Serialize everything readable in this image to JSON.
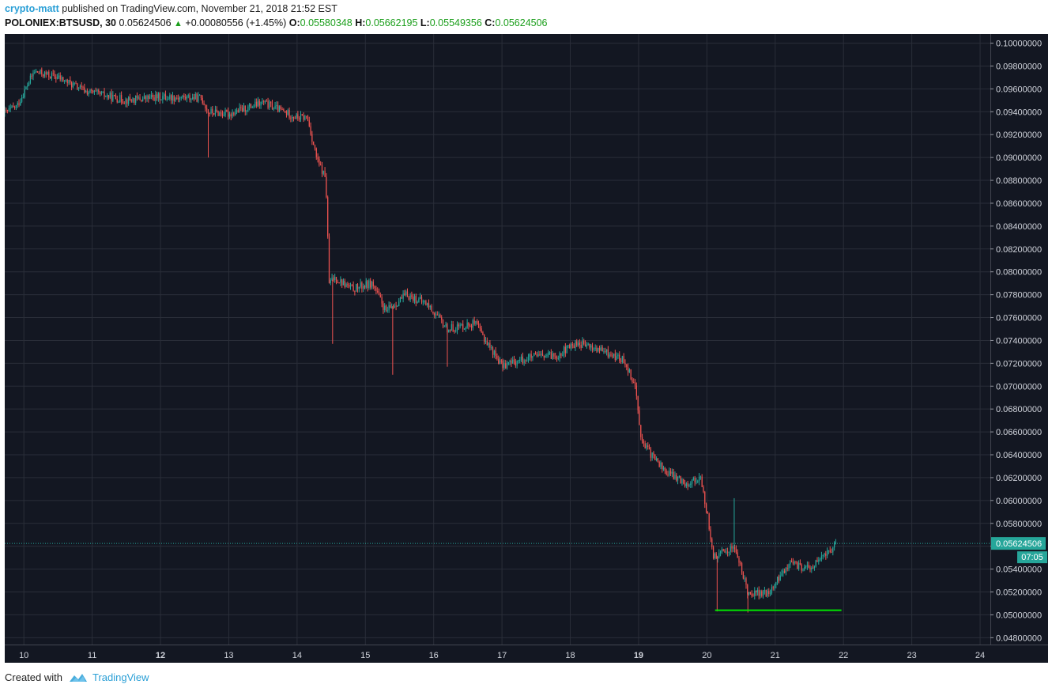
{
  "header": {
    "author": "crypto-matt",
    "published_text": "published on TradingView.com, November 21, 2018 21:52 EST",
    "symbol": "POLONIEX:BTSUSD, 30",
    "last_price": "0.05624506",
    "change": "+0.00080556 (+1.45%)",
    "o_label": "O:",
    "o_value": "0.05580348",
    "h_label": "H:",
    "h_value": "0.05662195",
    "l_label": "L:",
    "l_value": "0.05549356",
    "c_label": "C:",
    "c_value": "0.05624506"
  },
  "footer": {
    "created_with": "Created with",
    "brand": "TradingView"
  },
  "colors": {
    "background": "#131722",
    "grid": "#2a2e39",
    "up": "#26a69a",
    "down": "#ef5350",
    "support": "#00e600",
    "price_line": "#26a69a"
  },
  "chart_data": {
    "type": "candlestick",
    "x_label_values": [
      "10",
      "11",
      "12",
      "13",
      "14",
      "15",
      "16",
      "17",
      "18",
      "19",
      "20",
      "21",
      "22",
      "23",
      "24"
    ],
    "x_label_bold": [
      "12",
      "19"
    ],
    "y_ticks": [
      "0.10000000",
      "0.09800000",
      "0.09600000",
      "0.09400000",
      "0.09200000",
      "0.09000000",
      "0.08800000",
      "0.08600000",
      "0.08400000",
      "0.08200000",
      "0.08000000",
      "0.07800000",
      "0.07600000",
      "0.07400000",
      "0.07200000",
      "0.07000000",
      "0.06800000",
      "0.06600000",
      "0.06400000",
      "0.06200000",
      "0.06000000",
      "0.05800000",
      "0.05600000",
      "0.05400000",
      "0.05200000",
      "0.05000000",
      "0.04800000"
    ],
    "ylim": [
      0.0474,
      0.1008
    ],
    "xlim_days": [
      9.72,
      24.15
    ],
    "current_price": "0.05624506",
    "countdown": "07:05",
    "support_line": {
      "y": 0.0504,
      "x_start": 20.12,
      "x_end": 21.97
    },
    "anchors": [
      [
        9.72,
        0.0939
      ],
      [
        9.9,
        0.0945
      ],
      [
        10.15,
        0.0975
      ],
      [
        10.5,
        0.097
      ],
      [
        10.9,
        0.0958
      ],
      [
        11.5,
        0.095
      ],
      [
        12.0,
        0.0953
      ],
      [
        12.6,
        0.0952
      ],
      [
        12.7,
        0.094
      ],
      [
        13.0,
        0.0938
      ],
      [
        13.5,
        0.0948
      ],
      [
        14.0,
        0.0935
      ],
      [
        14.15,
        0.0935
      ],
      [
        14.3,
        0.0896
      ],
      [
        14.42,
        0.0882
      ],
      [
        14.47,
        0.079
      ],
      [
        14.55,
        0.0795
      ],
      [
        14.8,
        0.0785
      ],
      [
        15.1,
        0.079
      ],
      [
        15.3,
        0.0765
      ],
      [
        15.6,
        0.078
      ],
      [
        15.9,
        0.0772
      ],
      [
        16.2,
        0.075
      ],
      [
        16.6,
        0.0755
      ],
      [
        17.0,
        0.0718
      ],
      [
        17.4,
        0.0725
      ],
      [
        17.8,
        0.0727
      ],
      [
        18.1,
        0.0738
      ],
      [
        18.5,
        0.073
      ],
      [
        18.8,
        0.0722
      ],
      [
        18.95,
        0.07
      ],
      [
        19.05,
        0.065
      ],
      [
        19.4,
        0.0625
      ],
      [
        19.7,
        0.0615
      ],
      [
        19.9,
        0.062
      ],
      [
        20.0,
        0.059
      ],
      [
        20.1,
        0.055
      ],
      [
        20.4,
        0.056
      ],
      [
        20.6,
        0.052
      ],
      [
        20.9,
        0.0518
      ],
      [
        21.2,
        0.0545
      ],
      [
        21.5,
        0.054
      ],
      [
        21.9,
        0.0562
      ]
    ],
    "wicks": [
      [
        12.7,
        0.09
      ],
      [
        14.52,
        0.0737
      ],
      [
        15.4,
        0.071
      ],
      [
        16.2,
        0.0717
      ],
      [
        20.15,
        0.0503
      ],
      [
        20.4,
        0.0602
      ],
      [
        20.6,
        0.0502
      ]
    ]
  }
}
